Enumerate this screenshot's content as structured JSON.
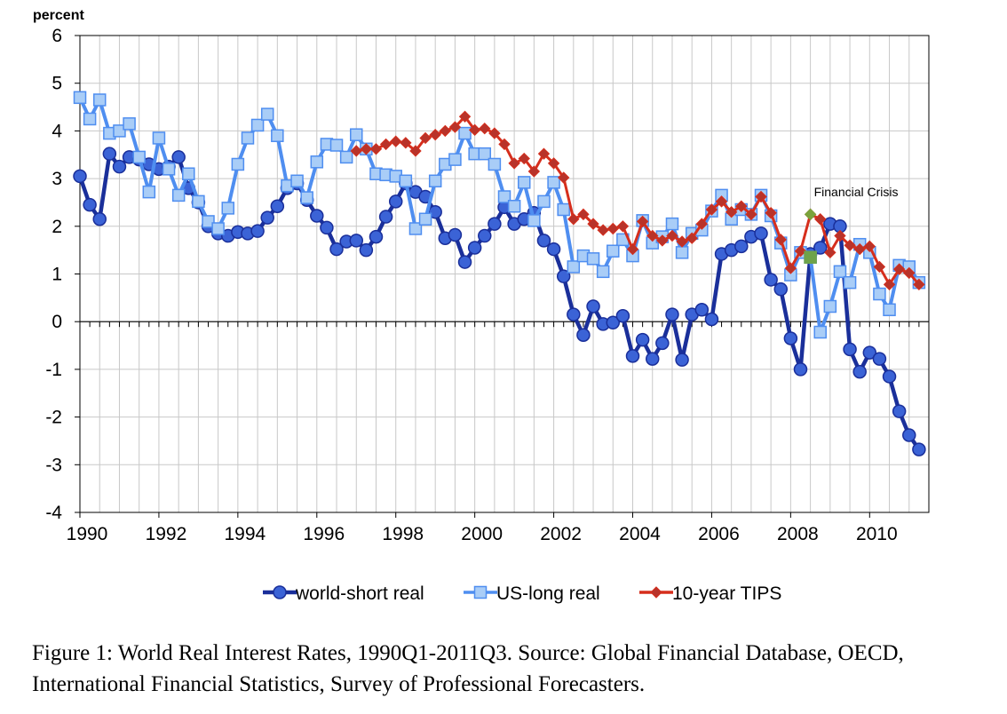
{
  "chart_data": {
    "type": "line",
    "ylabel": "percent",
    "ylim": [
      -4,
      6
    ],
    "yticks": [
      -4,
      -3,
      -2,
      -1,
      0,
      1,
      2,
      3,
      4,
      5,
      6
    ],
    "xlim": [
      1990,
      2011.5
    ],
    "xticks": [
      "1990",
      "1992",
      "1994",
      "1996",
      "1998",
      "2000",
      "2002",
      "2004",
      "2006",
      "2008",
      "2010"
    ],
    "legend_position": "bottom",
    "grid": true,
    "annotation": {
      "text": "Financial Crisis",
      "x": 2008.5,
      "y": 2.7
    },
    "series": [
      {
        "name": "world-short real",
        "color": "#1a2f9a",
        "marker": "circle",
        "marker_fill": "#3b63d6",
        "points": [
          [
            1990.0,
            3.05
          ],
          [
            1990.25,
            2.45
          ],
          [
            1990.5,
            2.15
          ],
          [
            1990.75,
            3.52
          ],
          [
            1991.0,
            3.25
          ],
          [
            1991.25,
            3.45
          ],
          [
            1991.5,
            3.4
          ],
          [
            1991.75,
            3.3
          ],
          [
            1992.0,
            3.2
          ],
          [
            1992.25,
            3.25
          ],
          [
            1992.5,
            3.45
          ],
          [
            1992.75,
            2.8
          ],
          [
            1993.0,
            2.5
          ],
          [
            1993.25,
            2.0
          ],
          [
            1993.5,
            1.85
          ],
          [
            1993.75,
            1.8
          ],
          [
            1994.0,
            1.88
          ],
          [
            1994.25,
            1.85
          ],
          [
            1994.5,
            1.9
          ],
          [
            1994.75,
            2.18
          ],
          [
            1995.0,
            2.42
          ],
          [
            1995.25,
            2.8
          ],
          [
            1995.5,
            2.9
          ],
          [
            1995.75,
            2.55
          ],
          [
            1996.0,
            2.22
          ],
          [
            1996.25,
            1.97
          ],
          [
            1996.5,
            1.52
          ],
          [
            1996.75,
            1.68
          ],
          [
            1997.0,
            1.7
          ],
          [
            1997.25,
            1.5
          ],
          [
            1997.5,
            1.78
          ],
          [
            1997.75,
            2.2
          ],
          [
            1998.0,
            2.52
          ],
          [
            1998.25,
            2.9
          ],
          [
            1998.5,
            2.72
          ],
          [
            1998.75,
            2.62
          ],
          [
            1999.0,
            2.3
          ],
          [
            1999.25,
            1.75
          ],
          [
            1999.5,
            1.82
          ],
          [
            1999.75,
            1.25
          ],
          [
            2000.0,
            1.55
          ],
          [
            2000.25,
            1.8
          ],
          [
            2000.5,
            2.05
          ],
          [
            2000.75,
            2.4
          ],
          [
            2001.0,
            2.05
          ],
          [
            2001.25,
            2.15
          ],
          [
            2001.5,
            2.28
          ],
          [
            2001.75,
            1.7
          ],
          [
            2002.0,
            1.52
          ],
          [
            2002.25,
            0.95
          ],
          [
            2002.5,
            0.15
          ],
          [
            2002.75,
            -0.28
          ],
          [
            2003.0,
            0.32
          ],
          [
            2003.25,
            -0.05
          ],
          [
            2003.5,
            -0.02
          ],
          [
            2003.75,
            0.12
          ],
          [
            2004.0,
            -0.72
          ],
          [
            2004.25,
            -0.38
          ],
          [
            2004.5,
            -0.78
          ],
          [
            2004.75,
            -0.45
          ],
          [
            2005.0,
            0.15
          ],
          [
            2005.25,
            -0.8
          ],
          [
            2005.5,
            0.15
          ],
          [
            2005.75,
            0.25
          ],
          [
            2006.0,
            0.05
          ],
          [
            2006.25,
            1.42
          ],
          [
            2006.5,
            1.5
          ],
          [
            2006.75,
            1.58
          ],
          [
            2007.0,
            1.78
          ],
          [
            2007.25,
            1.85
          ],
          [
            2007.5,
            0.88
          ],
          [
            2007.75,
            0.68
          ],
          [
            2008.0,
            -0.35
          ],
          [
            2008.25,
            -1.0
          ],
          [
            2008.5,
            1.42
          ],
          [
            2008.75,
            1.55
          ],
          [
            2009.0,
            2.05
          ],
          [
            2009.25,
            2.0
          ],
          [
            2009.5,
            -0.58
          ],
          [
            2009.75,
            -1.05
          ],
          [
            2010.0,
            -0.65
          ],
          [
            2010.25,
            -0.78
          ],
          [
            2010.5,
            -1.15
          ],
          [
            2010.75,
            -1.88
          ],
          [
            2011.0,
            -2.38
          ],
          [
            2011.25,
            -2.68
          ]
        ]
      },
      {
        "name": "US-long real",
        "color": "#4f8ef0",
        "marker": "square",
        "marker_fill": "#a9cdf7",
        "points": [
          [
            1990.0,
            4.7
          ],
          [
            1990.25,
            4.25
          ],
          [
            1990.5,
            4.65
          ],
          [
            1990.75,
            3.95
          ],
          [
            1991.0,
            4.0
          ],
          [
            1991.25,
            4.15
          ],
          [
            1991.5,
            3.45
          ],
          [
            1991.75,
            2.72
          ],
          [
            1992.0,
            3.85
          ],
          [
            1992.25,
            3.2
          ],
          [
            1992.5,
            2.65
          ],
          [
            1992.75,
            3.1
          ],
          [
            1993.0,
            2.52
          ],
          [
            1993.25,
            2.1
          ],
          [
            1993.5,
            1.95
          ],
          [
            1993.75,
            2.38
          ],
          [
            1994.0,
            3.3
          ],
          [
            1994.25,
            3.85
          ],
          [
            1994.5,
            4.12
          ],
          [
            1994.75,
            4.35
          ],
          [
            1995.0,
            3.9
          ],
          [
            1995.25,
            2.85
          ],
          [
            1995.5,
            2.95
          ],
          [
            1995.75,
            2.6
          ],
          [
            1996.0,
            3.35
          ],
          [
            1996.25,
            3.72
          ],
          [
            1996.5,
            3.7
          ],
          [
            1996.75,
            3.45
          ],
          [
            1997.0,
            3.92
          ],
          [
            1997.25,
            3.62
          ],
          [
            1997.5,
            3.1
          ],
          [
            1997.75,
            3.08
          ],
          [
            1998.0,
            3.05
          ],
          [
            1998.25,
            2.95
          ],
          [
            1998.5,
            1.95
          ],
          [
            1998.75,
            2.15
          ],
          [
            1999.0,
            2.95
          ],
          [
            1999.25,
            3.3
          ],
          [
            1999.5,
            3.4
          ],
          [
            1999.75,
            3.95
          ],
          [
            2000.0,
            3.52
          ],
          [
            2000.25,
            3.52
          ],
          [
            2000.5,
            3.3
          ],
          [
            2000.75,
            2.62
          ],
          [
            2001.0,
            2.42
          ],
          [
            2001.25,
            2.92
          ],
          [
            2001.5,
            2.12
          ],
          [
            2001.75,
            2.52
          ],
          [
            2002.0,
            2.92
          ],
          [
            2002.25,
            2.35
          ],
          [
            2002.5,
            1.15
          ],
          [
            2002.75,
            1.38
          ],
          [
            2003.0,
            1.32
          ],
          [
            2003.25,
            1.05
          ],
          [
            2003.5,
            1.48
          ],
          [
            2003.75,
            1.72
          ],
          [
            2004.0,
            1.38
          ],
          [
            2004.25,
            2.12
          ],
          [
            2004.5,
            1.65
          ],
          [
            2004.75,
            1.78
          ],
          [
            2005.0,
            2.05
          ],
          [
            2005.25,
            1.45
          ],
          [
            2005.5,
            1.85
          ],
          [
            2005.75,
            1.92
          ],
          [
            2006.0,
            2.32
          ],
          [
            2006.25,
            2.65
          ],
          [
            2006.5,
            2.15
          ],
          [
            2006.75,
            2.35
          ],
          [
            2007.0,
            2.25
          ],
          [
            2007.25,
            2.65
          ],
          [
            2007.5,
            2.22
          ],
          [
            2007.75,
            1.65
          ],
          [
            2008.0,
            0.98
          ],
          [
            2008.25,
            1.45
          ],
          [
            2008.5,
            1.35
          ],
          [
            2008.75,
            -0.22
          ],
          [
            2009.0,
            0.32
          ],
          [
            2009.25,
            1.05
          ],
          [
            2009.5,
            0.82
          ],
          [
            2009.75,
            1.62
          ],
          [
            2010.0,
            1.45
          ],
          [
            2010.25,
            0.58
          ],
          [
            2010.5,
            0.25
          ],
          [
            2010.75,
            1.18
          ],
          [
            2011.0,
            1.15
          ],
          [
            2011.25,
            0.82
          ]
        ]
      },
      {
        "name": "10-year TIPS",
        "color": "#d62e1c",
        "marker": "diamond",
        "marker_fill": "#b8332a",
        "points": [
          [
            1997.0,
            3.58
          ],
          [
            1997.25,
            3.62
          ],
          [
            1997.5,
            3.62
          ],
          [
            1997.75,
            3.72
          ],
          [
            1998.0,
            3.78
          ],
          [
            1998.25,
            3.75
          ],
          [
            1998.5,
            3.58
          ],
          [
            1998.75,
            3.85
          ],
          [
            1999.0,
            3.92
          ],
          [
            1999.25,
            4.0
          ],
          [
            1999.5,
            4.08
          ],
          [
            1999.75,
            4.3
          ],
          [
            2000.0,
            4.02
          ],
          [
            2000.25,
            4.05
          ],
          [
            2000.5,
            3.95
          ],
          [
            2000.75,
            3.72
          ],
          [
            2001.0,
            3.32
          ],
          [
            2001.25,
            3.42
          ],
          [
            2001.5,
            3.15
          ],
          [
            2001.75,
            3.52
          ],
          [
            2002.0,
            3.32
          ],
          [
            2002.25,
            3.02
          ],
          [
            2002.5,
            2.15
          ],
          [
            2002.75,
            2.25
          ],
          [
            2003.0,
            2.05
          ],
          [
            2003.25,
            1.92
          ],
          [
            2003.5,
            1.95
          ],
          [
            2003.75,
            2.0
          ],
          [
            2004.0,
            1.52
          ],
          [
            2004.25,
            2.1
          ],
          [
            2004.5,
            1.8
          ],
          [
            2004.75,
            1.7
          ],
          [
            2005.0,
            1.8
          ],
          [
            2005.25,
            1.68
          ],
          [
            2005.5,
            1.75
          ],
          [
            2005.75,
            2.05
          ],
          [
            2006.0,
            2.35
          ],
          [
            2006.25,
            2.52
          ],
          [
            2006.5,
            2.3
          ],
          [
            2006.75,
            2.42
          ],
          [
            2007.0,
            2.25
          ],
          [
            2007.25,
            2.62
          ],
          [
            2007.5,
            2.28
          ],
          [
            2007.75,
            1.72
          ],
          [
            2008.0,
            1.12
          ],
          [
            2008.25,
            1.48
          ],
          [
            2008.5,
            2.25
          ],
          [
            2008.75,
            2.15
          ],
          [
            2009.0,
            1.45
          ],
          [
            2009.25,
            1.8
          ],
          [
            2009.5,
            1.6
          ],
          [
            2009.75,
            1.52
          ],
          [
            2010.0,
            1.58
          ],
          [
            2010.25,
            1.15
          ],
          [
            2010.5,
            0.78
          ],
          [
            2010.75,
            1.1
          ],
          [
            2011.0,
            1.02
          ],
          [
            2011.25,
            0.78
          ]
        ]
      }
    ],
    "highlight_markers": [
      {
        "series": "10-year TIPS",
        "x": 2008.5,
        "y": 2.25,
        "color": "#7aa33c"
      },
      {
        "series": "US-long real",
        "x": 2008.5,
        "y": 1.35,
        "color": "#6ea34a"
      }
    ]
  },
  "caption": {
    "text": "Figure 1: World Real Interest Rates, 1990Q1-2011Q3. Source: Global Financial Database, OECD, International Financial Statistics, Survey of Professional Forecasters."
  }
}
